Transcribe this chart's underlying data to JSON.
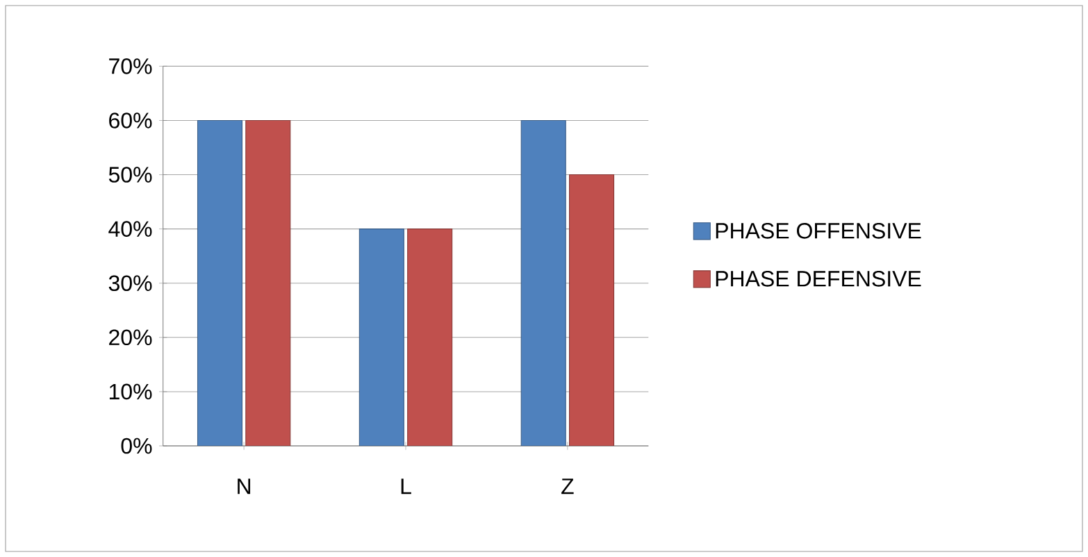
{
  "chart_data": {
    "type": "bar",
    "categories": [
      "N",
      "L",
      "Z"
    ],
    "series": [
      {
        "name": "PHASE OFFENSIVE",
        "color": "#4f81bd",
        "values": [
          60,
          40,
          60
        ]
      },
      {
        "name": "PHASE DEFENSIVE",
        "color": "#c0504d",
        "values": [
          60,
          40,
          50
        ]
      }
    ],
    "ylim": [
      0,
      70
    ],
    "yticks": [
      {
        "value": 0,
        "label": "0%"
      },
      {
        "value": 10,
        "label": "10%"
      },
      {
        "value": 20,
        "label": "20%"
      },
      {
        "value": 30,
        "label": "30%"
      },
      {
        "value": 40,
        "label": "40%"
      },
      {
        "value": 50,
        "label": "50%"
      },
      {
        "value": 60,
        "label": "60%"
      },
      {
        "value": 70,
        "label": "70%"
      }
    ],
    "grid": "y",
    "legend": "right"
  }
}
